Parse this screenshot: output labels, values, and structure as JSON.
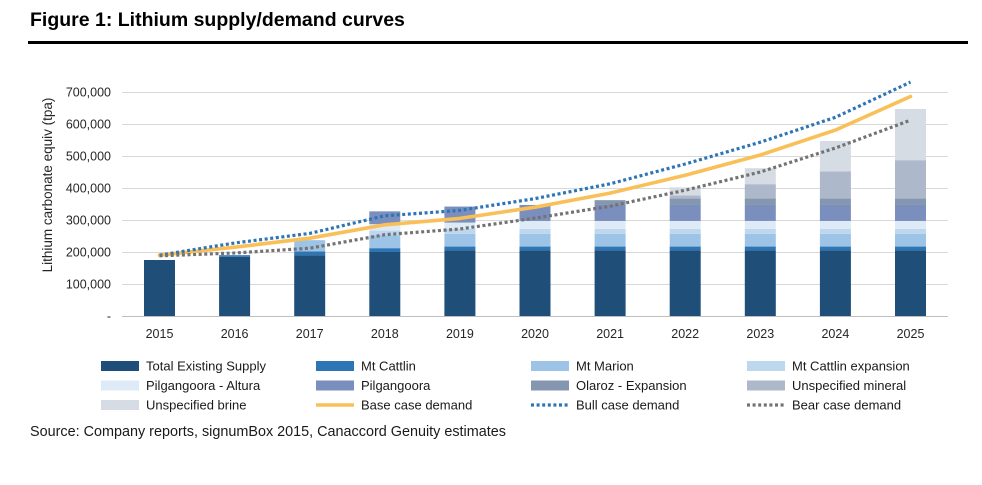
{
  "chart_data": {
    "type": "bar",
    "title": "Figure 1: Lithium supply/demand curves",
    "ylabel": "Lithium carbonate equiv (tpa)",
    "ylim": [
      0,
      700000
    ],
    "yticks": [
      0,
      100000,
      200000,
      300000,
      400000,
      500000,
      600000,
      700000
    ],
    "ytick_labels": [
      "-",
      "100,000",
      "200,000",
      "300,000",
      "400,000",
      "500,000",
      "600,000",
      "700,000"
    ],
    "categories": [
      "2015",
      "2016",
      "2017",
      "2018",
      "2019",
      "2020",
      "2021",
      "2022",
      "2023",
      "2024",
      "2025"
    ],
    "stacked": true,
    "grid": true,
    "legend": "bottom",
    "stacked_series": [
      {
        "name": "Total Existing Supply",
        "color": "#1F4E79",
        "values": [
          175000,
          185000,
          190000,
          200000,
          205000,
          205000,
          205000,
          205000,
          205000,
          205000,
          205000
        ]
      },
      {
        "name": "Mt Cattlin",
        "color": "#2E75B6",
        "values": [
          0,
          5000,
          12000,
          12000,
          12000,
          12000,
          12000,
          12000,
          12000,
          12000,
          12000
        ]
      },
      {
        "name": "Mt Marion",
        "color": "#9DC3E6",
        "values": [
          0,
          0,
          35000,
          40000,
          40000,
          40000,
          40000,
          40000,
          40000,
          40000,
          40000
        ]
      },
      {
        "name": "Mt Cattlin expansion",
        "color": "#BDD7EE",
        "values": [
          0,
          0,
          0,
          15000,
          15000,
          15000,
          15000,
          15000,
          15000,
          15000,
          15000
        ]
      },
      {
        "name": "Pilgangoora - Altura",
        "color": "#DEEBF7",
        "values": [
          0,
          0,
          0,
          20000,
          20000,
          25000,
          25000,
          25000,
          25000,
          25000,
          25000
        ]
      },
      {
        "name": "Pilgangoora",
        "color": "#7A8FBE",
        "values": [
          0,
          0,
          0,
          40000,
          50000,
          50000,
          50000,
          50000,
          50000,
          50000,
          50000
        ]
      },
      {
        "name": "Olaroz - Expansion",
        "color": "#8496B0",
        "values": [
          0,
          0,
          0,
          0,
          0,
          0,
          15000,
          20000,
          20000,
          20000,
          20000
        ]
      },
      {
        "name": "Unspecified mineral",
        "color": "#ADB9CA",
        "values": [
          0,
          0,
          0,
          0,
          0,
          0,
          0,
          10000,
          45000,
          85000,
          120000
        ]
      },
      {
        "name": "Unspecified brine",
        "color": "#D6DCE4",
        "values": [
          0,
          0,
          0,
          0,
          0,
          0,
          0,
          25000,
          50000,
          95000,
          160000
        ]
      }
    ],
    "line_series": [
      {
        "name": "Base case demand",
        "color": "#F9C05A",
        "style": "solid",
        "values": [
          190000,
          215000,
          243000,
          285000,
          305000,
          340000,
          384000,
          440000,
          503000,
          581000,
          686000
        ]
      },
      {
        "name": "Bull case demand",
        "color": "#2E75B6",
        "style": "dotted",
        "values": [
          190000,
          228000,
          258000,
          313000,
          330000,
          367000,
          413000,
          475000,
          543000,
          621000,
          731000
        ]
      },
      {
        "name": "Bear case demand",
        "color": "#737373",
        "style": "dotted",
        "values": [
          188000,
          197000,
          212000,
          254000,
          272000,
          306000,
          343000,
          393000,
          450000,
          525000,
          612000
        ]
      }
    ],
    "source": "Source: Company reports, signumBox 2015, Canaccord Genuity estimates"
  }
}
